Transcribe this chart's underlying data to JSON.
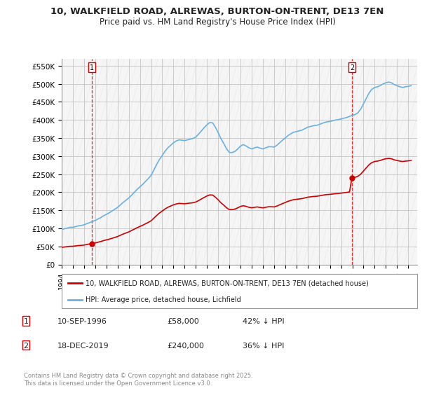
{
  "title_line1": "10, WALKFIELD ROAD, ALREWAS, BURTON-ON-TRENT, DE13 7EN",
  "title_line2": "Price paid vs. HM Land Registry's House Price Index (HPI)",
  "background_color": "#ffffff",
  "plot_bg_color": "#f5f5f5",
  "hpi_color": "#6ab0e0",
  "price_color": "#cc0000",
  "annotation1_date": "10-SEP-1996",
  "annotation1_price": "£58,000",
  "annotation1_hpi": "42% ↓ HPI",
  "annotation2_date": "18-DEC-2019",
  "annotation2_price": "£240,000",
  "annotation2_hpi": "36% ↓ HPI",
  "legend_line1": "10, WALKFIELD ROAD, ALREWAS, BURTON-ON-TRENT, DE13 7EN (detached house)",
  "legend_line2": "HPI: Average price, detached house, Lichfield",
  "footer": "Contains HM Land Registry data © Crown copyright and database right 2025.\nThis data is licensed under the Open Government Licence v3.0.",
  "ylim": [
    0,
    570000
  ],
  "xlim_start": 1994.0,
  "xlim_end": 2025.8,
  "sale1_x": 1996.69,
  "sale1_y": 58000,
  "sale2_x": 2019.96,
  "sale2_y": 240000,
  "hpi_x": [
    1994.0,
    1994.25,
    1994.5,
    1994.75,
    1995.0,
    1995.25,
    1995.5,
    1995.75,
    1996.0,
    1996.25,
    1996.5,
    1996.75,
    1997.0,
    1997.25,
    1997.5,
    1997.75,
    1998.0,
    1998.25,
    1998.5,
    1998.75,
    1999.0,
    1999.25,
    1999.5,
    1999.75,
    2000.0,
    2000.25,
    2000.5,
    2000.75,
    2001.0,
    2001.25,
    2001.5,
    2001.75,
    2002.0,
    2002.25,
    2002.5,
    2002.75,
    2003.0,
    2003.25,
    2003.5,
    2003.75,
    2004.0,
    2004.25,
    2004.5,
    2004.75,
    2005.0,
    2005.25,
    2005.5,
    2005.75,
    2006.0,
    2006.25,
    2006.5,
    2006.75,
    2007.0,
    2007.25,
    2007.5,
    2007.75,
    2008.0,
    2008.25,
    2008.5,
    2008.75,
    2009.0,
    2009.25,
    2009.5,
    2009.75,
    2010.0,
    2010.25,
    2010.5,
    2010.75,
    2011.0,
    2011.25,
    2011.5,
    2011.75,
    2012.0,
    2012.25,
    2012.5,
    2012.75,
    2013.0,
    2013.25,
    2013.5,
    2013.75,
    2014.0,
    2014.25,
    2014.5,
    2014.75,
    2015.0,
    2015.25,
    2015.5,
    2015.75,
    2016.0,
    2016.25,
    2016.5,
    2016.75,
    2017.0,
    2017.25,
    2017.5,
    2017.75,
    2018.0,
    2018.25,
    2018.5,
    2018.75,
    2019.0,
    2019.25,
    2019.5,
    2019.75,
    2020.0,
    2020.25,
    2020.5,
    2020.75,
    2021.0,
    2021.25,
    2021.5,
    2021.75,
    2022.0,
    2022.25,
    2022.5,
    2022.75,
    2023.0,
    2023.25,
    2023.5,
    2023.75,
    2024.0,
    2024.25,
    2024.5,
    2024.75,
    2025.0,
    2025.25
  ],
  "hpi_y": [
    97000,
    99000,
    101000,
    103000,
    103000,
    105000,
    107000,
    108000,
    110000,
    113000,
    116000,
    119000,
    122000,
    126000,
    130000,
    135000,
    139000,
    143000,
    148000,
    153000,
    158000,
    165000,
    172000,
    178000,
    184000,
    192000,
    200000,
    208000,
    215000,
    222000,
    230000,
    238000,
    247000,
    262000,
    277000,
    291000,
    302000,
    314000,
    323000,
    330000,
    337000,
    342000,
    345000,
    344000,
    343000,
    345000,
    347000,
    349000,
    353000,
    361000,
    370000,
    379000,
    387000,
    393000,
    392000,
    380000,
    365000,
    348000,
    335000,
    320000,
    310000,
    310000,
    313000,
    320000,
    328000,
    332000,
    328000,
    323000,
    320000,
    323000,
    325000,
    322000,
    320000,
    323000,
    326000,
    326000,
    325000,
    330000,
    337000,
    344000,
    350000,
    357000,
    362000,
    366000,
    368000,
    370000,
    372000,
    376000,
    380000,
    382000,
    384000,
    385000,
    387000,
    390000,
    393000,
    395000,
    396000,
    398000,
    400000,
    401000,
    403000,
    405000,
    407000,
    410000,
    413000,
    415000,
    420000,
    430000,
    445000,
    460000,
    475000,
    485000,
    490000,
    492000,
    495000,
    500000,
    503000,
    505000,
    503000,
    498000,
    495000,
    492000,
    490000,
    492000,
    493000,
    495000
  ]
}
